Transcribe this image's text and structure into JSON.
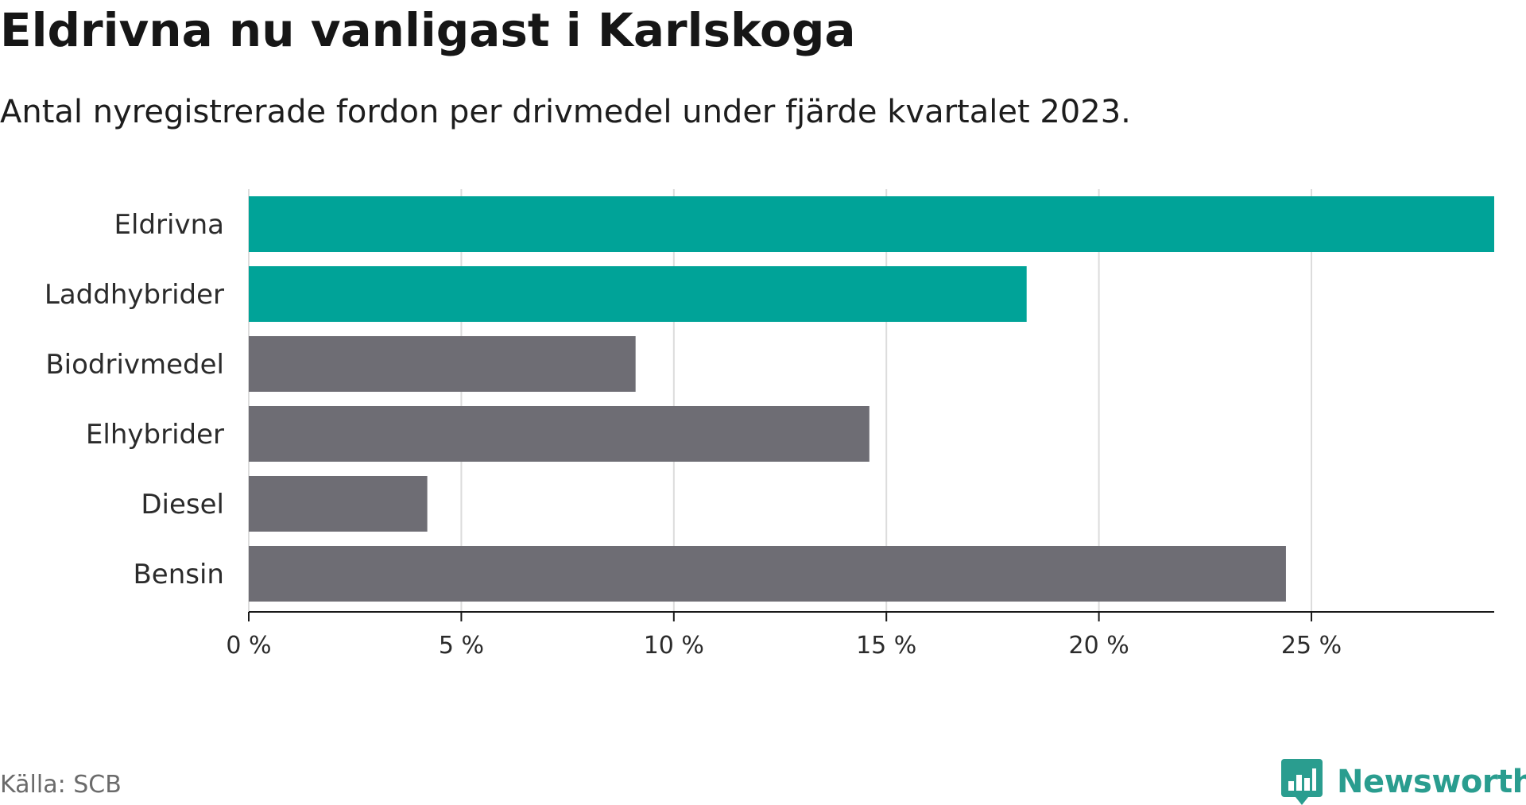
{
  "header": {
    "title": "Eldrivna nu vanligast i Karlskoga",
    "subtitle": "Antal nyregistrerade fordon per drivmedel under fjärde kvartalet 2023."
  },
  "footer": {
    "source": "Källa: SCB",
    "brand": "Newsworthy",
    "brand_icon": "bar-chart-speech-bubble-icon"
  },
  "colors": {
    "highlight": "#00a398",
    "neutral": "#6e6d74",
    "grid": "#dcdcdc",
    "axis": "#1a1a1a",
    "brand": "#2a9d8f"
  },
  "chart_data": {
    "type": "bar",
    "orientation": "horizontal",
    "title": "Eldrivna nu vanligast i Karlskoga",
    "subtitle": "Antal nyregistrerade fordon per drivmedel under fjärde kvartalet 2023.",
    "categories": [
      "Eldrivna",
      "Laddhybrider",
      "Biodrivmedel",
      "Elhybrider",
      "Diesel",
      "Bensin"
    ],
    "values": [
      29.3,
      18.3,
      9.1,
      14.6,
      4.2,
      24.4
    ],
    "highlighted": [
      true,
      true,
      false,
      false,
      false,
      false
    ],
    "unit": "%",
    "xlim": [
      0,
      29.3
    ],
    "xticks": [
      0,
      5,
      10,
      15,
      20,
      25
    ],
    "xtick_labels": [
      "0 %",
      "5 %",
      "10 %",
      "15 %",
      "20 %",
      "25 %"
    ],
    "xlabel": "",
    "ylabel": "",
    "grid": "vertical",
    "legend": "none"
  }
}
